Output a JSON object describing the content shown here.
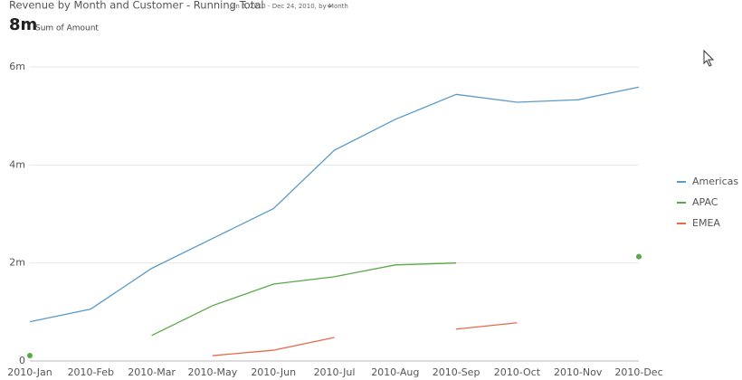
{
  "header": {
    "title": "Revenue by Month and Customer - Running Total",
    "subtitle": "Jan 6, 2010 - Dec 24, 2010, by Month",
    "kpi_value": "8m",
    "kpi_label": "Sum of Amount"
  },
  "chart_data": {
    "type": "line",
    "categories": [
      "2010-Jan",
      "2010-Feb",
      "2010-Mar",
      "2010-May",
      "2010-Jun",
      "2010-Jul",
      "2010-Aug",
      "2010-Sep",
      "2010-Oct",
      "2010-Nov",
      "2010-Dec"
    ],
    "series": [
      {
        "name": "Americas",
        "color": "#5b9bc8",
        "values": [
          800000,
          1060000,
          1890000,
          2500000,
          3110000,
          4300000,
          4930000,
          5440000,
          5280000,
          5330000,
          5590000
        ]
      },
      {
        "name": "APAC",
        "color": "#5aa84a",
        "values": [
          110000,
          null,
          520000,
          1130000,
          1570000,
          1720000,
          1960000,
          2000000,
          null,
          null,
          2130000
        ]
      },
      {
        "name": "EMEA",
        "color": "#e8694a",
        "values": [
          null,
          null,
          null,
          110000,
          220000,
          480000,
          null,
          650000,
          780000,
          null,
          null
        ]
      }
    ],
    "ylim": [
      0,
      6000000
    ],
    "yticks": [
      0,
      {
        "value": 2000000,
        "label": "2m"
      },
      {
        "value": 4000000,
        "label": "4m"
      },
      {
        "value": 6000000,
        "label": "6m"
      }
    ],
    "grid": true,
    "legend": "right"
  }
}
